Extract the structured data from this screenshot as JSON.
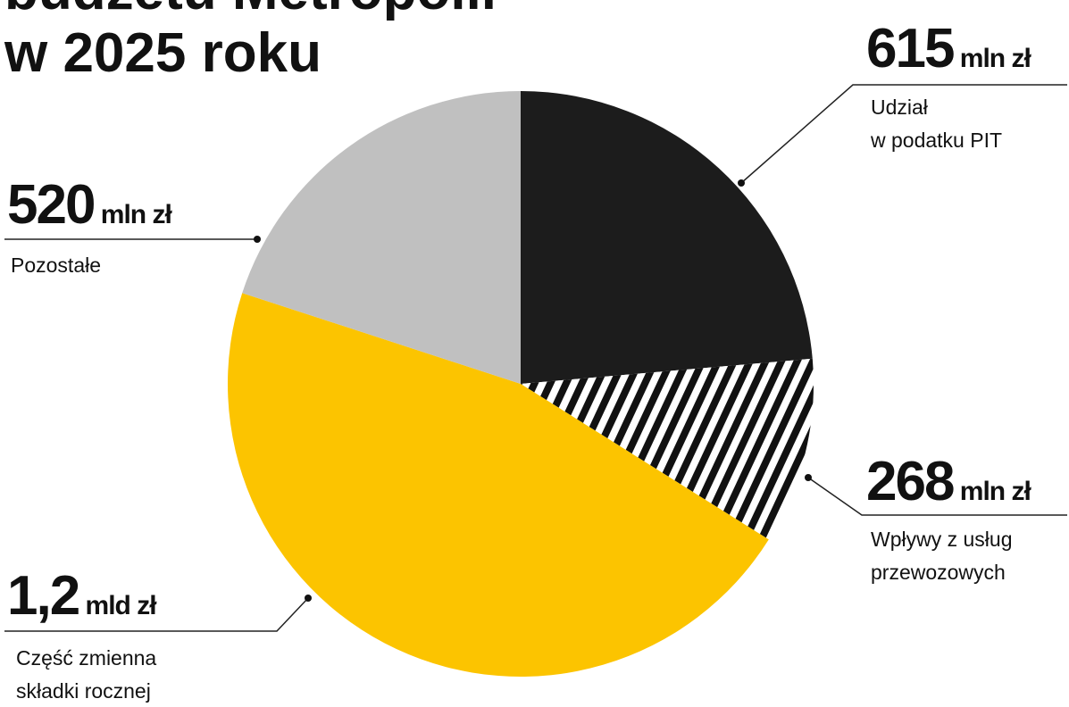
{
  "chart_data": {
    "type": "pie",
    "title": [
      "budżetu Metropolii",
      "w 2025 roku"
    ],
    "categories": [
      "Udział\nw podatku PIT",
      "Wpływy z usług\nprzewozowych",
      "Część zmienna\nskładki rocznej",
      "Pozostałe"
    ],
    "values": [
      615,
      268,
      1200,
      520
    ],
    "value_labels": [
      "615 mln zł",
      "268 mln zł",
      "1,2 mld zł",
      "520 mln zł"
    ],
    "colors": [
      "#1c1c1c",
      "striped",
      "#fcc400",
      "#c0c0c0"
    ]
  }
}
